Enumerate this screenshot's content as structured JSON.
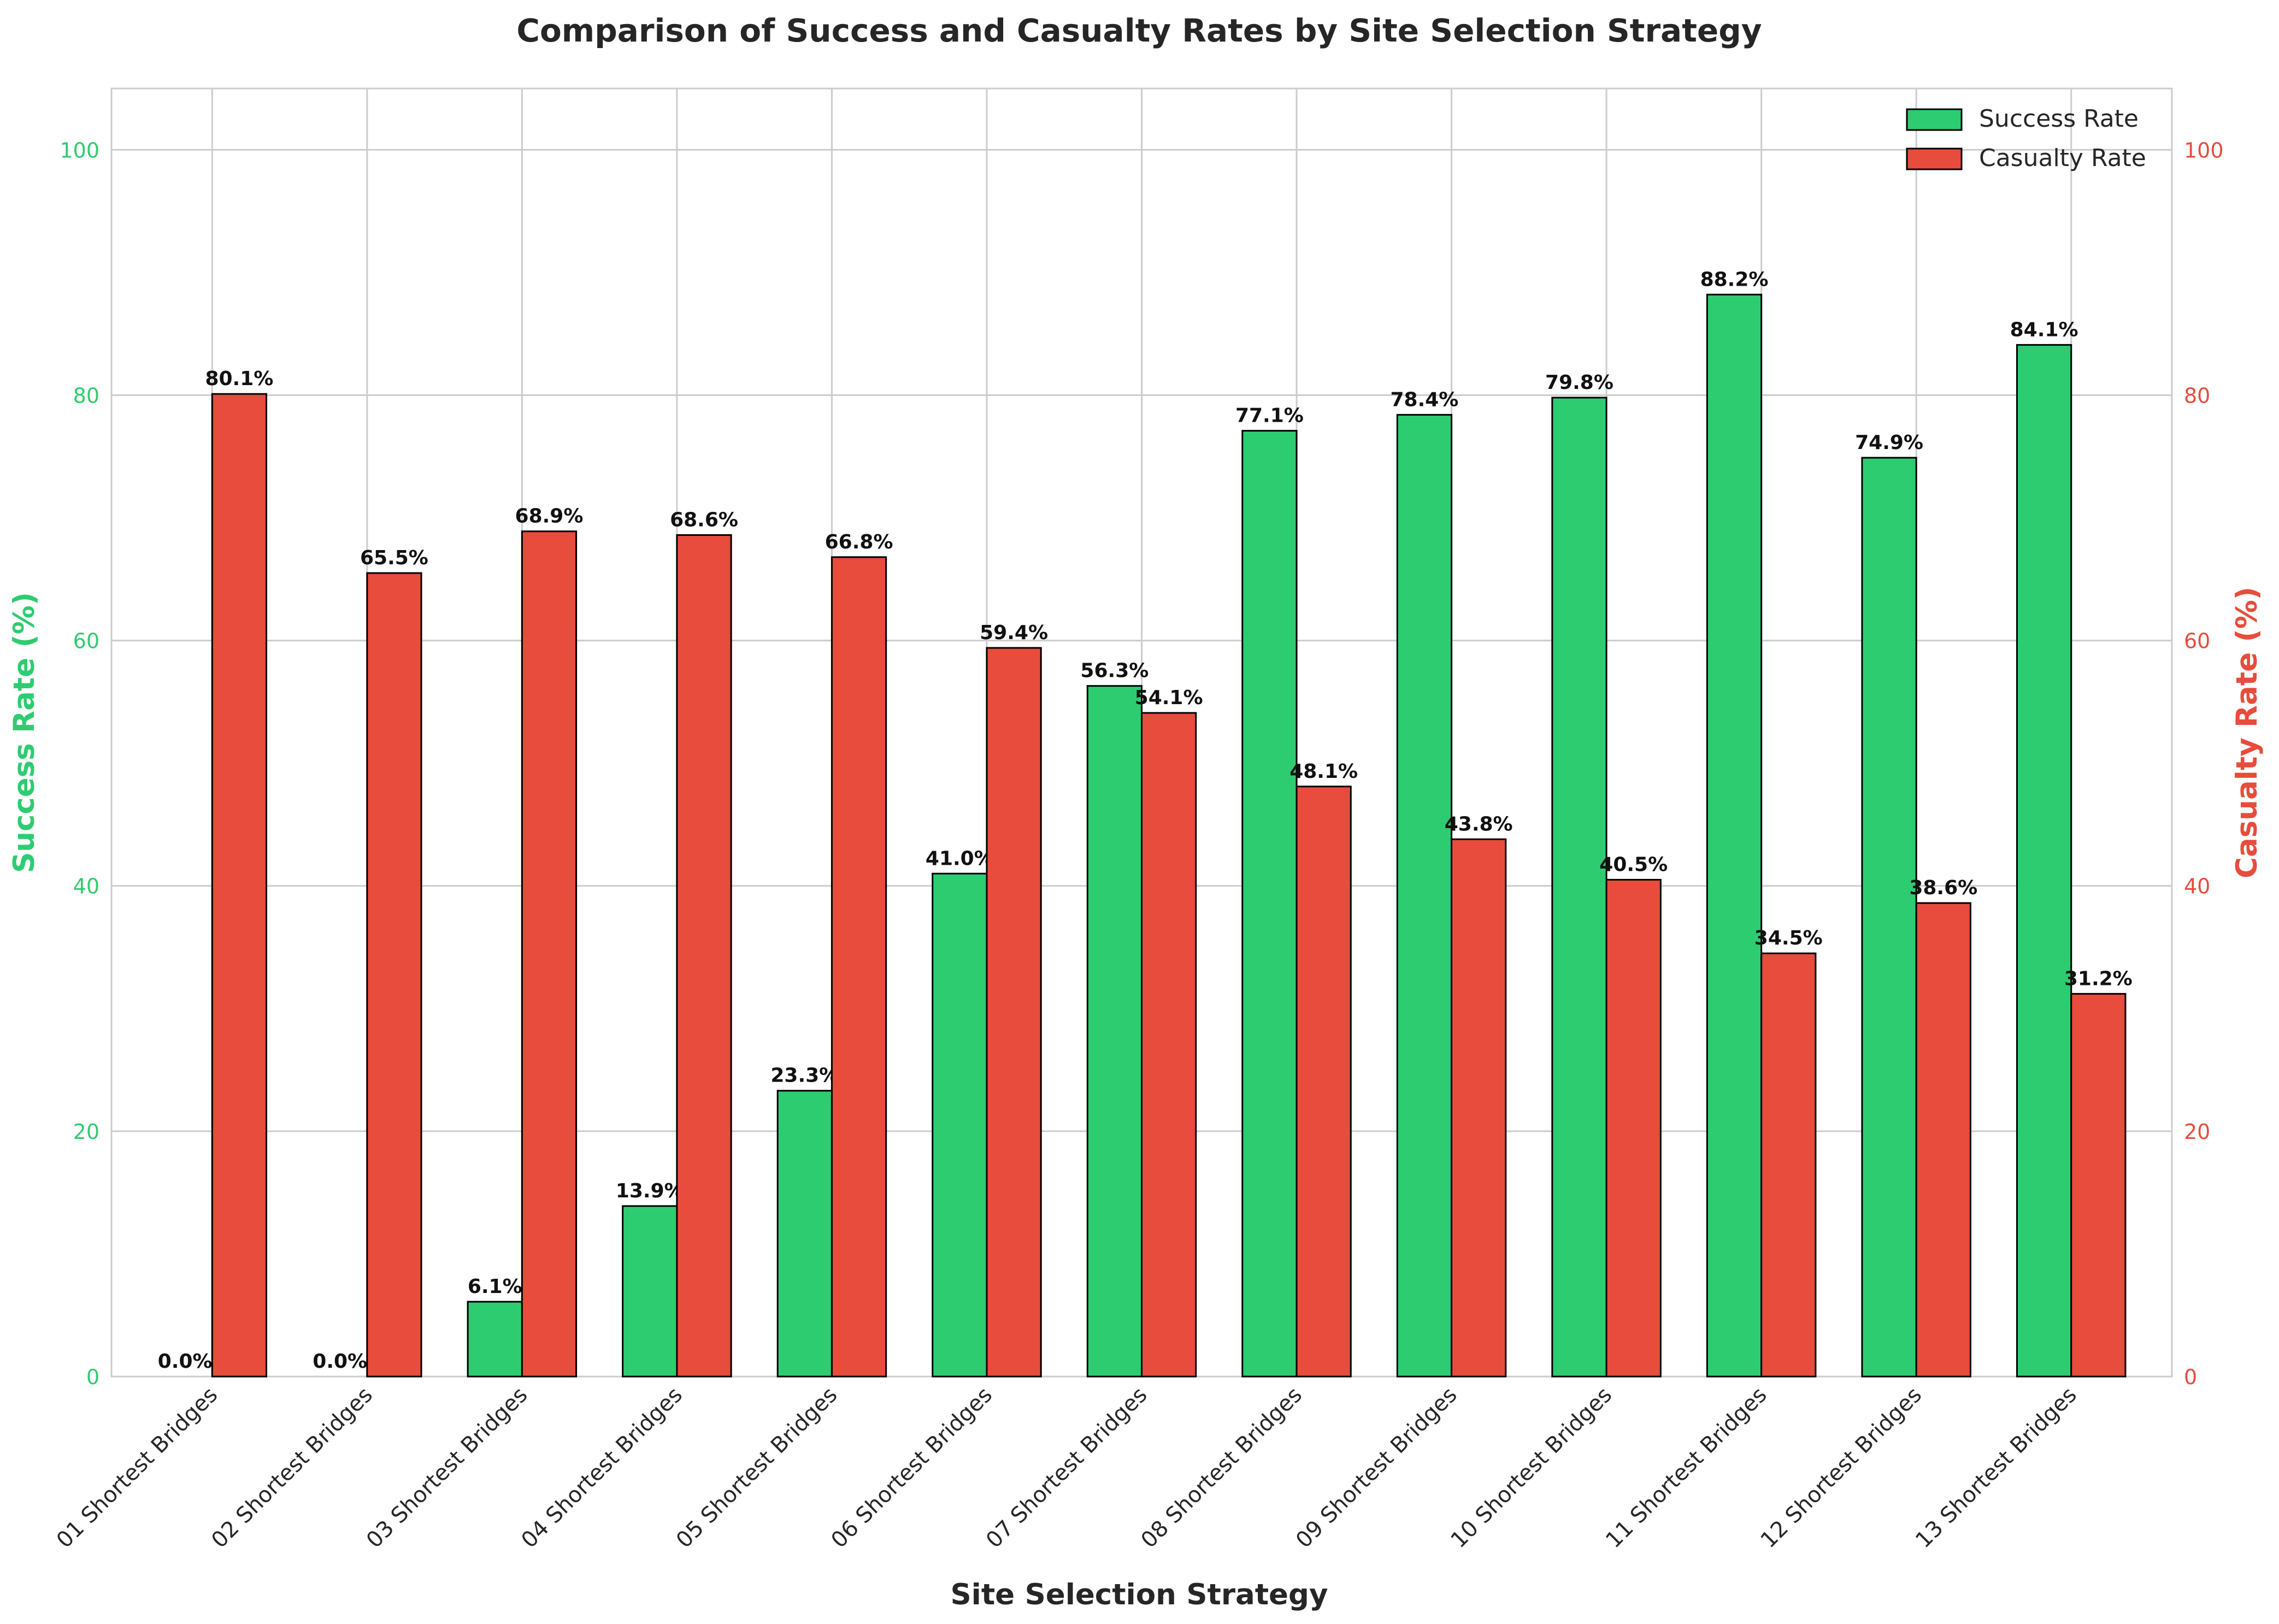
{
  "chart_data": {
    "type": "bar",
    "title": "Comparison of Success and Casualty Rates by Site Selection Strategy",
    "xlabel": "Site Selection Strategy",
    "ylabel_left": "Success Rate (%)",
    "ylabel_right": "Casualty Rate (%)",
    "ylim": [
      0,
      105
    ],
    "yticks": [
      "0",
      "20",
      "40",
      "60",
      "80",
      "100"
    ],
    "ytick_values": [
      0,
      20,
      40,
      60,
      80,
      100
    ],
    "grid": true,
    "legend_position": "top-right",
    "categories": [
      "01 Shortest Bridges",
      "02 Shortest Bridges",
      "03 Shortest Bridges",
      "04 Shortest Bridges",
      "05 Shortest Bridges",
      "06 Shortest Bridges",
      "07 Shortest Bridges",
      "08 Shortest Bridges",
      "09 Shortest Bridges",
      "10 Shortest Bridges",
      "11 Shortest Bridges",
      "12 Shortest Bridges",
      "13 Shortest Bridges"
    ],
    "series": [
      {
        "name": "Success Rate",
        "color": "#2ecc71",
        "values": [
          0.0,
          0.0,
          6.1,
          13.9,
          23.3,
          41.0,
          56.3,
          77.1,
          78.4,
          79.8,
          88.2,
          74.9,
          84.1
        ],
        "labels": [
          "0.0%",
          "0.0%",
          "6.1%",
          "13.9%",
          "23.3%",
          "41.0%",
          "56.3%",
          "77.1%",
          "78.4%",
          "79.8%",
          "88.2%",
          "74.9%",
          "84.1%"
        ]
      },
      {
        "name": "Casualty Rate",
        "color": "#e74c3c",
        "values": [
          80.1,
          65.5,
          68.9,
          68.6,
          66.8,
          59.4,
          54.1,
          48.1,
          43.8,
          40.5,
          34.5,
          38.6,
          31.2
        ],
        "labels": [
          "80.1%",
          "65.5%",
          "68.9%",
          "68.6%",
          "66.8%",
          "59.4%",
          "54.1%",
          "48.1%",
          "43.8%",
          "40.5%",
          "34.5%",
          "38.6%",
          "31.2%"
        ]
      }
    ]
  }
}
